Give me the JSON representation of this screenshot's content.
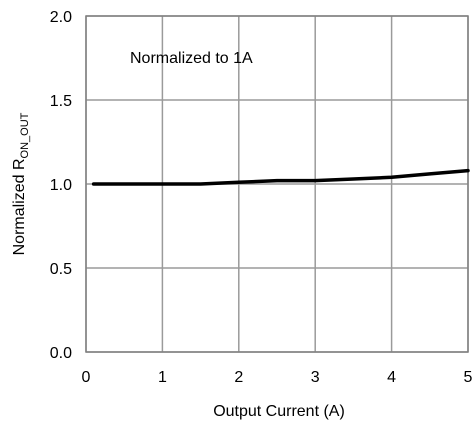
{
  "chart_data": {
    "type": "line",
    "xlabel": "Output Current (A)",
    "ylabel": {
      "main": "Normalized R",
      "subscript": "ON_OUT"
    },
    "annotation": "Normalized to 1A",
    "xlim": [
      0,
      5
    ],
    "ylim": [
      0.0,
      2.0
    ],
    "x_ticks": [
      0,
      1,
      2,
      3,
      4,
      5
    ],
    "x_tick_labels": [
      "0",
      "1",
      "2",
      "3",
      "4",
      "5"
    ],
    "y_ticks": [
      0.0,
      0.5,
      1.0,
      1.5,
      2.0
    ],
    "y_tick_labels": [
      "0.0",
      "0.5",
      "1.0",
      "1.5",
      "2.0"
    ],
    "grid": true,
    "series": [
      {
        "color": "#000000",
        "x": [
          0.1,
          0.5,
          1.0,
          1.5,
          2.0,
          2.5,
          3.0,
          3.5,
          4.0,
          4.5,
          5.0
        ],
        "y": [
          1.0,
          1.0,
          1.0,
          1.0,
          1.01,
          1.02,
          1.02,
          1.03,
          1.04,
          1.06,
          1.08
        ]
      }
    ]
  }
}
